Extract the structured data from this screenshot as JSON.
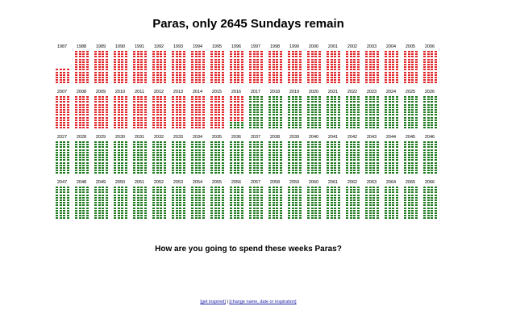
{
  "title": "Paras, only 2645 Sundays remain",
  "question": "How are you going to spend these weeks Paras?",
  "footer": {
    "link_inspired": "[get inspired]",
    "separator": "|",
    "link_change": "[change name, date or inspiration]"
  },
  "colors": {
    "past": "#e0262b",
    "remaining": "#1f7a1f",
    "link": "#1a1aa6"
  },
  "years": [
    "1987",
    "1988",
    "1989",
    "1990",
    "1991",
    "1992",
    "1993",
    "1994",
    "1995",
    "1996",
    "1997",
    "1998",
    "1999",
    "2000",
    "2001",
    "2002",
    "2003",
    "2004",
    "2005",
    "2006",
    "2007",
    "2008",
    "2009",
    "2010",
    "2011",
    "2012",
    "2013",
    "2014",
    "2015",
    "2016",
    "2017",
    "2018",
    "2019",
    "2020",
    "2021",
    "2022",
    "2023",
    "2024",
    "2025",
    "2026",
    "2027",
    "2028",
    "2029",
    "2030",
    "2031",
    "2032",
    "2033",
    "2034",
    "2035",
    "2036",
    "2037",
    "2038",
    "2039",
    "2040",
    "2041",
    "2042",
    "2043",
    "2044",
    "2045",
    "2046",
    "2047",
    "2048",
    "2049",
    "2050",
    "2051",
    "2052",
    "2053",
    "2054",
    "2055",
    "2056",
    "2057",
    "2058",
    "2059",
    "2060",
    "2061",
    "2062",
    "2063",
    "2064",
    "2065",
    "2066"
  ],
  "weeks_shown_per_year": 52,
  "first_year_weeks_shown": 24,
  "past_weeks_in_current_year": 40,
  "current_year": "2016",
  "remaining_sundays": 2645
}
